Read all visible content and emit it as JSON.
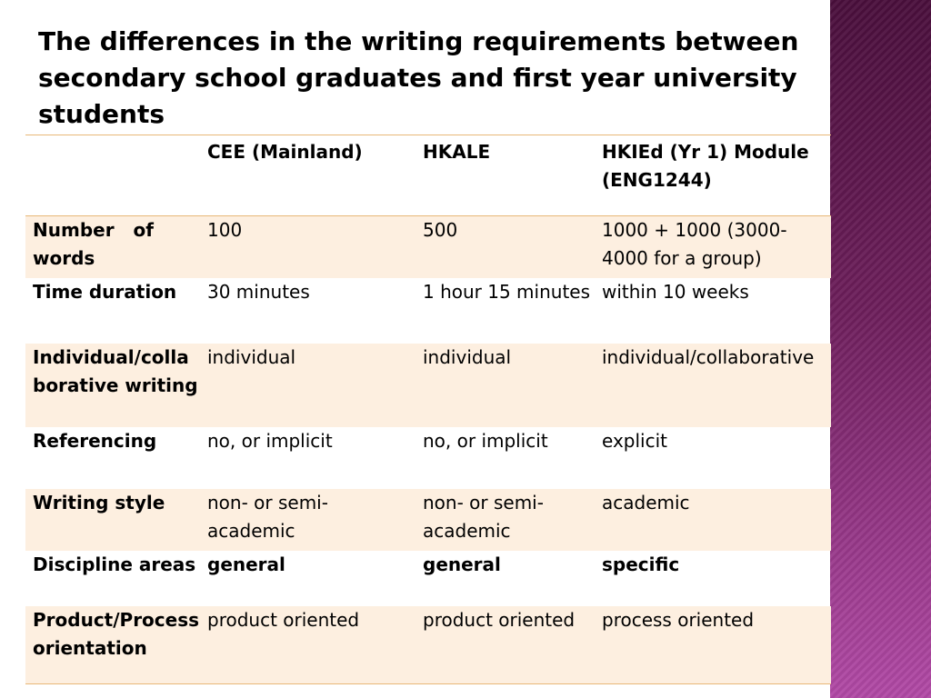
{
  "title": "The differences in the writing requirements between secondary school graduates and first year university students",
  "table": {
    "headers": [
      "",
      "CEE (Mainland)",
      "HKALE",
      "HKIEd (Yr 1) Module (ENG1244)"
    ],
    "rows": [
      {
        "label": "Number   of words",
        "cells": [
          "100",
          "500",
          "1000 + 1000 (3000-4000 for a group)"
        ]
      },
      {
        "label": "Time duration",
        "cells": [
          "30 minutes",
          "1 hour 15 minutes",
          "within 10 weeks"
        ]
      },
      {
        "label": "Individual/collaborative writing",
        "cells": [
          "individual",
          "individual",
          "individual/collaborative"
        ]
      },
      {
        "label": "Referencing",
        "cells": [
          "no, or implicit",
          "no, or implicit",
          "explicit"
        ]
      },
      {
        "label": "Writing style",
        "cells": [
          "non- or semi-academic",
          "non- or semi-academic",
          "academic"
        ]
      },
      {
        "label": "Discipline areas",
        "cells": [
          "general",
          "general",
          "specific"
        ]
      },
      {
        "label": "Product/Process orientation",
        "cells": [
          "product oriented",
          "product oriented",
          "process oriented"
        ]
      }
    ]
  },
  "colors": {
    "header_rule": "#e8b878",
    "row_shade": "#fdefe0",
    "side_band": "#6e1f5c"
  }
}
